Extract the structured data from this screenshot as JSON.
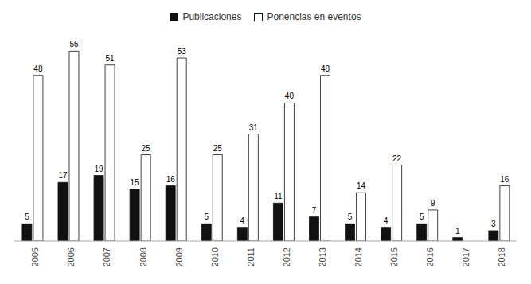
{
  "chart_data": {
    "type": "bar",
    "categories": [
      "2005",
      "2006",
      "2007",
      "2008",
      "2009",
      "2010",
      "2011",
      "2012",
      "2013",
      "2014",
      "2015",
      "2016",
      "2017",
      "2018"
    ],
    "series": [
      {
        "name": "Publicaciones",
        "color": "#111111",
        "values": [
          5,
          17,
          19,
          15,
          16,
          5,
          4,
          11,
          7,
          5,
          4,
          5,
          1,
          3
        ]
      },
      {
        "name": "Ponencias en eventos",
        "color": "#ffffff",
        "values": [
          48,
          55,
          51,
          25,
          53,
          25,
          31,
          40,
          48,
          14,
          22,
          9,
          0,
          16
        ]
      }
    ],
    "ylim": [
      0,
      62
    ],
    "data_labels": true,
    "legend": "top",
    "grid": false,
    "tick_labels": "x"
  }
}
